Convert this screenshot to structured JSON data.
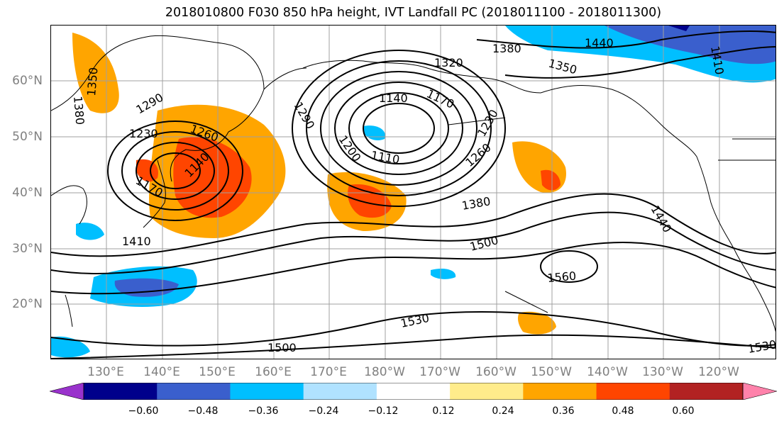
{
  "title": "2018010800 F030 850 hPa height, IVT Landfall PC (2018011100 - 2018011300)",
  "map": {
    "lat_labels": [
      "60°N",
      "50°N",
      "40°N",
      "30°N",
      "20°N"
    ],
    "lon_labels": [
      "130°E",
      "140°E",
      "150°E",
      "160°E",
      "170°E",
      "180°W",
      "170°W",
      "160°W",
      "150°W",
      "140°W",
      "130°W",
      "120°W"
    ],
    "contour_labels": [
      "1380",
      "1350",
      "1290",
      "1230",
      "1260",
      "1170",
      "1140",
      "1410",
      "1320",
      "1380",
      "1350",
      "1440",
      "1140",
      "1170",
      "1290",
      "1200",
      "1110",
      "1230",
      "1260",
      "1380",
      "1500",
      "1440",
      "1560",
      "1530",
      "1500",
      "1530",
      "1410"
    ]
  },
  "colorbar": {
    "colors": [
      "#9932cc",
      "#00008b",
      "#3a5fcd",
      "#00bfff",
      "#b0e2ff",
      "#ffffff",
      "#ffec8b",
      "#ffa500",
      "#ff4500",
      "#b22222",
      "#ff82ab"
    ],
    "tick_labels": [
      "−0.60",
      "−0.48",
      "−0.36",
      "−0.24",
      "−0.12",
      "0.12",
      "0.24",
      "0.36",
      "0.48",
      "0.60"
    ]
  }
}
